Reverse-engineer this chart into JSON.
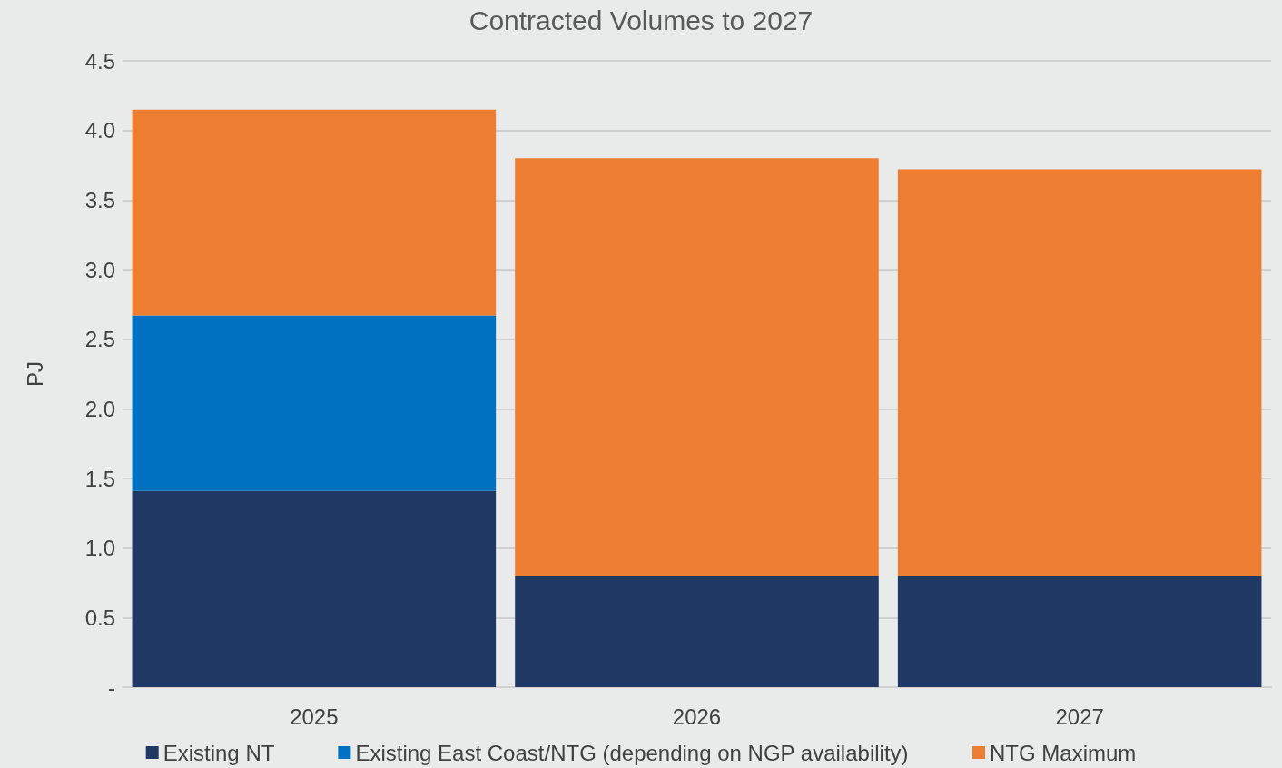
{
  "chart_data": {
    "type": "bar",
    "title": "Contracted Volumes to 2027",
    "ylabel": "PJ",
    "categories": [
      "2025",
      "2026",
      "2027"
    ],
    "stacked": true,
    "series": [
      {
        "name": "Existing NT",
        "color": "#203864",
        "values": [
          1.41,
          0.8,
          0.8
        ]
      },
      {
        "name": "Existing East Coast/NTG (depending on NGP availability)",
        "color": "#0070c0",
        "values": [
          1.26,
          0,
          0
        ]
      },
      {
        "name": "NTG Maximum",
        "color": "#ed7d31",
        "values": [
          1.48,
          3.0,
          2.92
        ]
      }
    ],
    "ylim": [
      0,
      4.5
    ],
    "yticks": [
      {
        "value": 0,
        "label": "-"
      },
      0.5,
      {
        "value": 1,
        "label": "1.0"
      },
      1.5,
      {
        "value": 2,
        "label": "2.0"
      },
      2.5,
      {
        "value": 3,
        "label": "3.0"
      },
      3.5,
      {
        "value": 4,
        "label": "4.0"
      },
      4.5
    ],
    "grid": "y",
    "legend": "bottom"
  }
}
